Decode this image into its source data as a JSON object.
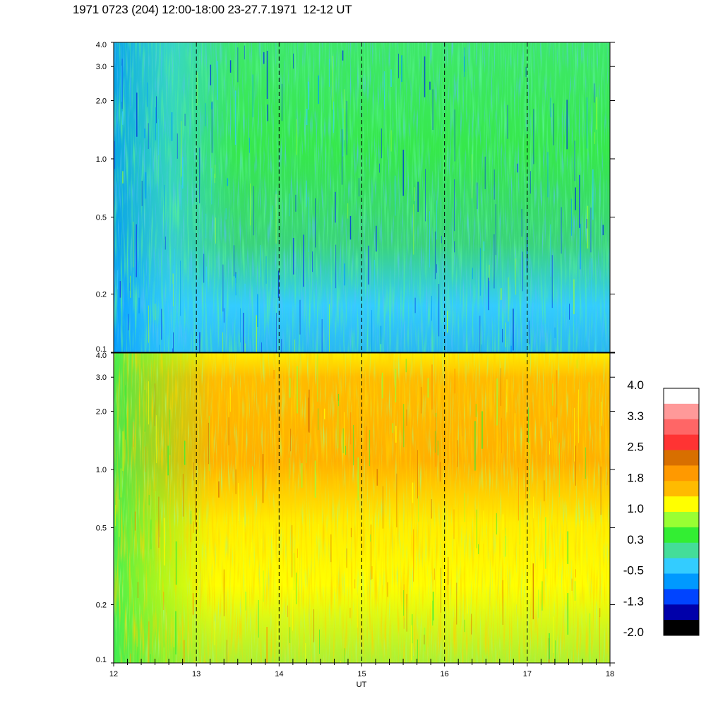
{
  "title": "1971 0723 (204) 12:00-18:00 23-27.7.1971  12-12 UT",
  "chart_data": [
    {
      "type": "heatmap",
      "panel": "top",
      "x_range": [
        12,
        18
      ],
      "y_range": [
        0.1,
        4.0
      ],
      "y_scale": "log",
      "y_ticks": [
        "4.0",
        "3.0",
        "2.0",
        "1.0",
        "0.5",
        "0.2",
        "0.1"
      ],
      "x_ticks": [
        "12",
        "13",
        "14",
        "15",
        "16",
        "17",
        "18"
      ],
      "dashed_hour_markers": [
        13,
        14,
        15,
        16,
        17
      ]
    },
    {
      "type": "heatmap",
      "panel": "bottom",
      "x_range": [
        12,
        18
      ],
      "y_range": [
        0.1,
        4.0
      ],
      "y_scale": "log",
      "y_ticks": [
        "4.0",
        "3.0",
        "2.0",
        "1.0",
        "0.5",
        "0.2",
        "0.1"
      ],
      "x_ticks": [
        "12",
        "13",
        "14",
        "15",
        "16",
        "17",
        "18"
      ],
      "xlabel": "UT",
      "dashed_hour_markers": [
        13,
        14,
        15,
        16,
        17
      ]
    }
  ],
  "colorbar": {
    "labels": [
      "4.0",
      "3.3",
      "2.5",
      "1.8",
      "1.0",
      "0.3",
      "-0.5",
      "-1.3",
      "-2.0"
    ],
    "colors": [
      "#ffffff",
      "#ff9999",
      "#ff6666",
      "#ff3333",
      "#d86f00",
      "#ff9900",
      "#ffbb00",
      "#ffff00",
      "#99ff33",
      "#33ee33",
      "#44dd99",
      "#33ccff",
      "#0099ff",
      "#0044ff",
      "#0000aa",
      "#000000"
    ]
  }
}
